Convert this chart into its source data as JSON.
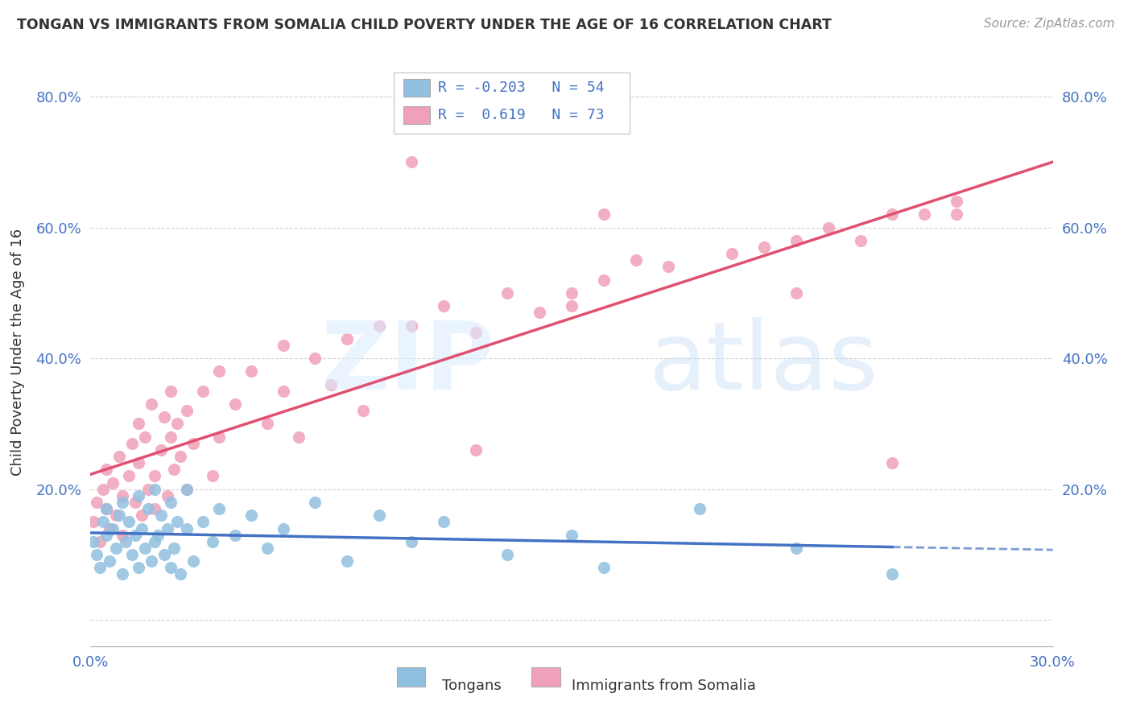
{
  "title": "TONGAN VS IMMIGRANTS FROM SOMALIA CHILD POVERTY UNDER THE AGE OF 16 CORRELATION CHART",
  "source": "Source: ZipAtlas.com",
  "ylabel": "Child Poverty Under the Age of 16",
  "xlim": [
    0.0,
    0.3
  ],
  "ylim": [
    -0.04,
    0.86
  ],
  "yticks": [
    0.0,
    0.2,
    0.4,
    0.6,
    0.8
  ],
  "ytick_labels": [
    "",
    "20.0%",
    "40.0%",
    "60.0%",
    "80.0%"
  ],
  "xticks": [
    0.0,
    0.3
  ],
  "xtick_labels": [
    "0.0%",
    "30.0%"
  ],
  "tongan_R": -0.203,
  "tongan_N": 54,
  "somalia_R": 0.619,
  "somalia_N": 73,
  "background_color": "#ffffff",
  "grid_color": "#d0d0d0",
  "tongan_color": "#92c0e0",
  "somalia_color": "#f0a0b8",
  "tongan_line_color": "#4472c4",
  "somalia_line_color": "#e05070",
  "tongan_scatter_x": [
    0.001,
    0.002,
    0.003,
    0.004,
    0.005,
    0.005,
    0.006,
    0.007,
    0.008,
    0.009,
    0.01,
    0.01,
    0.011,
    0.012,
    0.013,
    0.014,
    0.015,
    0.015,
    0.016,
    0.017,
    0.018,
    0.019,
    0.02,
    0.02,
    0.021,
    0.022,
    0.023,
    0.024,
    0.025,
    0.025,
    0.026,
    0.027,
    0.028,
    0.03,
    0.03,
    0.032,
    0.035,
    0.038,
    0.04,
    0.045,
    0.05,
    0.055,
    0.06,
    0.07,
    0.08,
    0.09,
    0.1,
    0.11,
    0.13,
    0.15,
    0.16,
    0.19,
    0.22,
    0.25
  ],
  "tongan_scatter_y": [
    0.12,
    0.1,
    0.08,
    0.15,
    0.13,
    0.17,
    0.09,
    0.14,
    0.11,
    0.16,
    0.18,
    0.07,
    0.12,
    0.15,
    0.1,
    0.13,
    0.19,
    0.08,
    0.14,
    0.11,
    0.17,
    0.09,
    0.12,
    0.2,
    0.13,
    0.16,
    0.1,
    0.14,
    0.18,
    0.08,
    0.11,
    0.15,
    0.07,
    0.14,
    0.2,
    0.09,
    0.15,
    0.12,
    0.17,
    0.13,
    0.16,
    0.11,
    0.14,
    0.18,
    0.09,
    0.16,
    0.12,
    0.15,
    0.1,
    0.13,
    0.08,
    0.17,
    0.11,
    0.07
  ],
  "somalia_scatter_x": [
    0.001,
    0.002,
    0.003,
    0.004,
    0.005,
    0.005,
    0.006,
    0.007,
    0.008,
    0.009,
    0.01,
    0.01,
    0.012,
    0.013,
    0.014,
    0.015,
    0.015,
    0.016,
    0.017,
    0.018,
    0.019,
    0.02,
    0.02,
    0.022,
    0.023,
    0.024,
    0.025,
    0.025,
    0.026,
    0.027,
    0.028,
    0.03,
    0.03,
    0.032,
    0.035,
    0.038,
    0.04,
    0.04,
    0.045,
    0.05,
    0.055,
    0.06,
    0.06,
    0.065,
    0.07,
    0.075,
    0.08,
    0.085,
    0.09,
    0.1,
    0.11,
    0.12,
    0.13,
    0.14,
    0.15,
    0.16,
    0.17,
    0.18,
    0.2,
    0.21,
    0.22,
    0.23,
    0.24,
    0.25,
    0.26,
    0.27,
    0.1,
    0.12,
    0.15,
    0.25,
    0.27,
    0.16,
    0.22
  ],
  "somalia_scatter_y": [
    0.15,
    0.18,
    0.12,
    0.2,
    0.17,
    0.23,
    0.14,
    0.21,
    0.16,
    0.25,
    0.19,
    0.13,
    0.22,
    0.27,
    0.18,
    0.24,
    0.3,
    0.16,
    0.28,
    0.2,
    0.33,
    0.22,
    0.17,
    0.26,
    0.31,
    0.19,
    0.28,
    0.35,
    0.23,
    0.3,
    0.25,
    0.32,
    0.2,
    0.27,
    0.35,
    0.22,
    0.38,
    0.28,
    0.33,
    0.38,
    0.3,
    0.35,
    0.42,
    0.28,
    0.4,
    0.36,
    0.43,
    0.32,
    0.45,
    0.45,
    0.48,
    0.44,
    0.5,
    0.47,
    0.5,
    0.52,
    0.55,
    0.54,
    0.56,
    0.57,
    0.58,
    0.6,
    0.58,
    0.62,
    0.62,
    0.64,
    0.7,
    0.26,
    0.48,
    0.24,
    0.62,
    0.62,
    0.5
  ]
}
